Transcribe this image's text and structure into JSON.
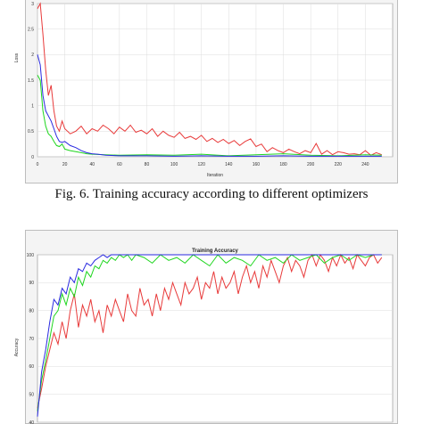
{
  "caption": "Fig. 6. Training accuracy according to different optimizers",
  "colors": {
    "series1": "#e83a3a",
    "series2": "#1fd61f",
    "series3": "#2a2ae0"
  },
  "chart_data": [
    {
      "type": "line",
      "title": "",
      "xlabel": "Iteration",
      "ylabel": "Loss",
      "xlim": [
        0,
        260
      ],
      "ylim": [
        0,
        3
      ],
      "xticks": [
        0,
        20,
        40,
        60,
        80,
        100,
        120,
        140,
        160,
        180,
        200,
        220,
        240
      ],
      "xtick_labels": [
        "0",
        "20",
        "40",
        "60",
        "80",
        "100",
        "120",
        "140",
        "160",
        "180",
        "200",
        "220",
        "240"
      ],
      "yticks": [
        0,
        0.5,
        1,
        1.5,
        2,
        2.5,
        3
      ],
      "ytick_labels": [
        "0",
        "0.5",
        "1",
        "1.5",
        "2",
        "2.5",
        "3"
      ],
      "grid": true,
      "series": [
        {
          "color": "#e83a3a",
          "x": [
            0,
            2,
            4,
            6,
            8,
            10,
            12,
            14,
            16,
            18,
            20,
            24,
            28,
            32,
            36,
            40,
            44,
            48,
            52,
            56,
            60,
            64,
            68,
            72,
            76,
            80,
            84,
            88,
            92,
            96,
            100,
            104,
            108,
            112,
            116,
            120,
            124,
            128,
            132,
            136,
            140,
            144,
            148,
            152,
            156,
            160,
            164,
            168,
            172,
            176,
            180,
            184,
            188,
            192,
            196,
            200,
            204,
            208,
            212,
            216,
            220,
            224,
            228,
            232,
            236,
            240,
            244,
            248,
            252
          ],
          "y": [
            2.9,
            3.0,
            2.4,
            1.7,
            1.2,
            1.4,
            0.9,
            0.6,
            0.5,
            0.7,
            0.55,
            0.45,
            0.5,
            0.6,
            0.45,
            0.55,
            0.5,
            0.62,
            0.55,
            0.45,
            0.58,
            0.5,
            0.62,
            0.48,
            0.52,
            0.45,
            0.55,
            0.4,
            0.5,
            0.42,
            0.38,
            0.48,
            0.36,
            0.4,
            0.34,
            0.42,
            0.3,
            0.36,
            0.28,
            0.34,
            0.26,
            0.32,
            0.22,
            0.3,
            0.35,
            0.2,
            0.25,
            0.1,
            0.18,
            0.12,
            0.08,
            0.15,
            0.1,
            0.06,
            0.12,
            0.08,
            0.26,
            0.05,
            0.12,
            0.04,
            0.1,
            0.08,
            0.05,
            0.06,
            0.04,
            0.12,
            0.03,
            0.08,
            0.04
          ]
        },
        {
          "color": "#1fd61f",
          "x": [
            0,
            2,
            4,
            6,
            8,
            10,
            12,
            14,
            16,
            18,
            20,
            24,
            28,
            32,
            36,
            40,
            50,
            60,
            80,
            100,
            120,
            140,
            160,
            180,
            200,
            220,
            240,
            252
          ],
          "y": [
            1.6,
            1.5,
            0.9,
            0.6,
            0.45,
            0.4,
            0.3,
            0.22,
            0.2,
            0.25,
            0.15,
            0.12,
            0.1,
            0.08,
            0.06,
            0.05,
            0.04,
            0.03,
            0.04,
            0.03,
            0.05,
            0.02,
            0.04,
            0.06,
            0.03,
            0.02,
            0.04,
            0.03
          ]
        },
        {
          "color": "#2a2ae0",
          "x": [
            0,
            2,
            4,
            6,
            8,
            10,
            12,
            14,
            16,
            18,
            20,
            24,
            28,
            32,
            36,
            40,
            44,
            50,
            60,
            80,
            100,
            120,
            140,
            160,
            180,
            200,
            220,
            240,
            252
          ],
          "y": [
            2.0,
            1.8,
            1.2,
            0.9,
            0.8,
            0.7,
            0.55,
            0.4,
            0.3,
            0.28,
            0.3,
            0.22,
            0.18,
            0.12,
            0.08,
            0.06,
            0.05,
            0.03,
            0.02,
            0.02,
            0.01,
            0.02,
            0.01,
            0.01,
            0.02,
            0.01,
            0.01,
            0.01,
            0.01
          ]
        }
      ]
    },
    {
      "type": "line",
      "title": "Training Accuracy",
      "xlabel": "",
      "ylabel": "Accuracy",
      "xlim": [
        0,
        260
      ],
      "ylim": [
        40,
        100
      ],
      "yticks": [
        40,
        50,
        60,
        70,
        80,
        90,
        100
      ],
      "ytick_labels": [
        "40",
        "50",
        "60",
        "70",
        "80",
        "90",
        "100"
      ],
      "grid": true,
      "series": [
        {
          "color": "#e83a3a",
          "x": [
            0,
            3,
            6,
            9,
            12,
            15,
            18,
            21,
            24,
            27,
            30,
            33,
            36,
            39,
            42,
            45,
            48,
            51,
            54,
            57,
            60,
            63,
            66,
            69,
            72,
            75,
            78,
            81,
            84,
            87,
            90,
            93,
            96,
            99,
            102,
            105,
            108,
            111,
            114,
            117,
            120,
            123,
            126,
            129,
            132,
            135,
            138,
            141,
            144,
            147,
            150,
            153,
            156,
            159,
            162,
            165,
            168,
            171,
            174,
            177,
            180,
            183,
            186,
            189,
            192,
            195,
            198,
            201,
            204,
            207,
            210,
            213,
            216,
            219,
            222,
            225,
            228,
            231,
            234,
            237,
            240,
            243,
            246,
            249,
            252
          ],
          "y": [
            45,
            52,
            60,
            66,
            72,
            68,
            76,
            70,
            80,
            86,
            74,
            82,
            78,
            84,
            76,
            80,
            72,
            82,
            78,
            84,
            80,
            76,
            86,
            80,
            78,
            88,
            82,
            84,
            78,
            86,
            80,
            88,
            84,
            90,
            86,
            82,
            90,
            86,
            88,
            92,
            84,
            90,
            88,
            94,
            86,
            92,
            88,
            90,
            94,
            86,
            92,
            96,
            90,
            94,
            88,
            96,
            92,
            98,
            94,
            90,
            96,
            99,
            94,
            98,
            96,
            92,
            98,
            100,
            96,
            100,
            98,
            94,
            99,
            96,
            100,
            97,
            99,
            95,
            100,
            98,
            96,
            99,
            100,
            97,
            99
          ]
        },
        {
          "color": "#1fd61f",
          "x": [
            0,
            3,
            6,
            9,
            12,
            15,
            18,
            21,
            24,
            27,
            30,
            33,
            36,
            39,
            42,
            45,
            48,
            51,
            54,
            57,
            60,
            63,
            66,
            69,
            72,
            78,
            84,
            90,
            96,
            102,
            108,
            114,
            120,
            126,
            132,
            138,
            144,
            150,
            156,
            162,
            168,
            174,
            180,
            186,
            192,
            198,
            204,
            210,
            216,
            222,
            228,
            234,
            240,
            246,
            252
          ],
          "y": [
            44,
            55,
            62,
            70,
            78,
            80,
            86,
            82,
            88,
            85,
            92,
            89,
            94,
            92,
            96,
            95,
            98,
            97,
            99,
            98,
            100,
            99,
            100,
            98,
            100,
            99,
            97,
            100,
            98,
            99,
            97,
            100,
            98,
            96,
            100,
            97,
            99,
            98,
            96,
            100,
            98,
            99,
            97,
            100,
            98,
            99,
            100,
            97,
            99,
            100,
            98,
            100,
            99,
            100,
            100
          ]
        },
        {
          "color": "#2a2ae0",
          "x": [
            0,
            3,
            6,
            9,
            12,
            15,
            18,
            21,
            24,
            27,
            30,
            33,
            36,
            39,
            42,
            45,
            48,
            51,
            54,
            57,
            60,
            66,
            72,
            80,
            100,
            120,
            140,
            160,
            180,
            200,
            220,
            240,
            252
          ],
          "y": [
            42,
            58,
            66,
            76,
            84,
            82,
            88,
            86,
            92,
            90,
            95,
            94,
            97,
            96,
            98,
            99,
            100,
            99,
            100,
            100,
            100,
            100,
            100,
            100,
            100,
            100,
            100,
            100,
            100,
            100,
            100,
            100,
            100
          ]
        }
      ]
    }
  ]
}
